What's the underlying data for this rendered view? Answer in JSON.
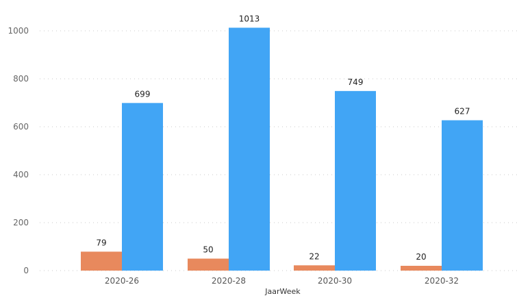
{
  "chart_data": {
    "type": "bar",
    "xlabel": "JaarWeek",
    "ylabel": "",
    "ylim": [
      0,
      1000
    ],
    "yticks": [
      0,
      200,
      400,
      600,
      800,
      1000
    ],
    "grid": true,
    "legend": "none",
    "categories": [
      "2020-26",
      "2020-28",
      "2020-30",
      "2020-32"
    ],
    "series": [
      {
        "values": [
          79,
          50,
          22,
          20
        ],
        "color": "#E8895D"
      },
      {
        "values": [
          699,
          1013,
          749,
          627
        ],
        "color": "#41A5F5"
      }
    ]
  }
}
